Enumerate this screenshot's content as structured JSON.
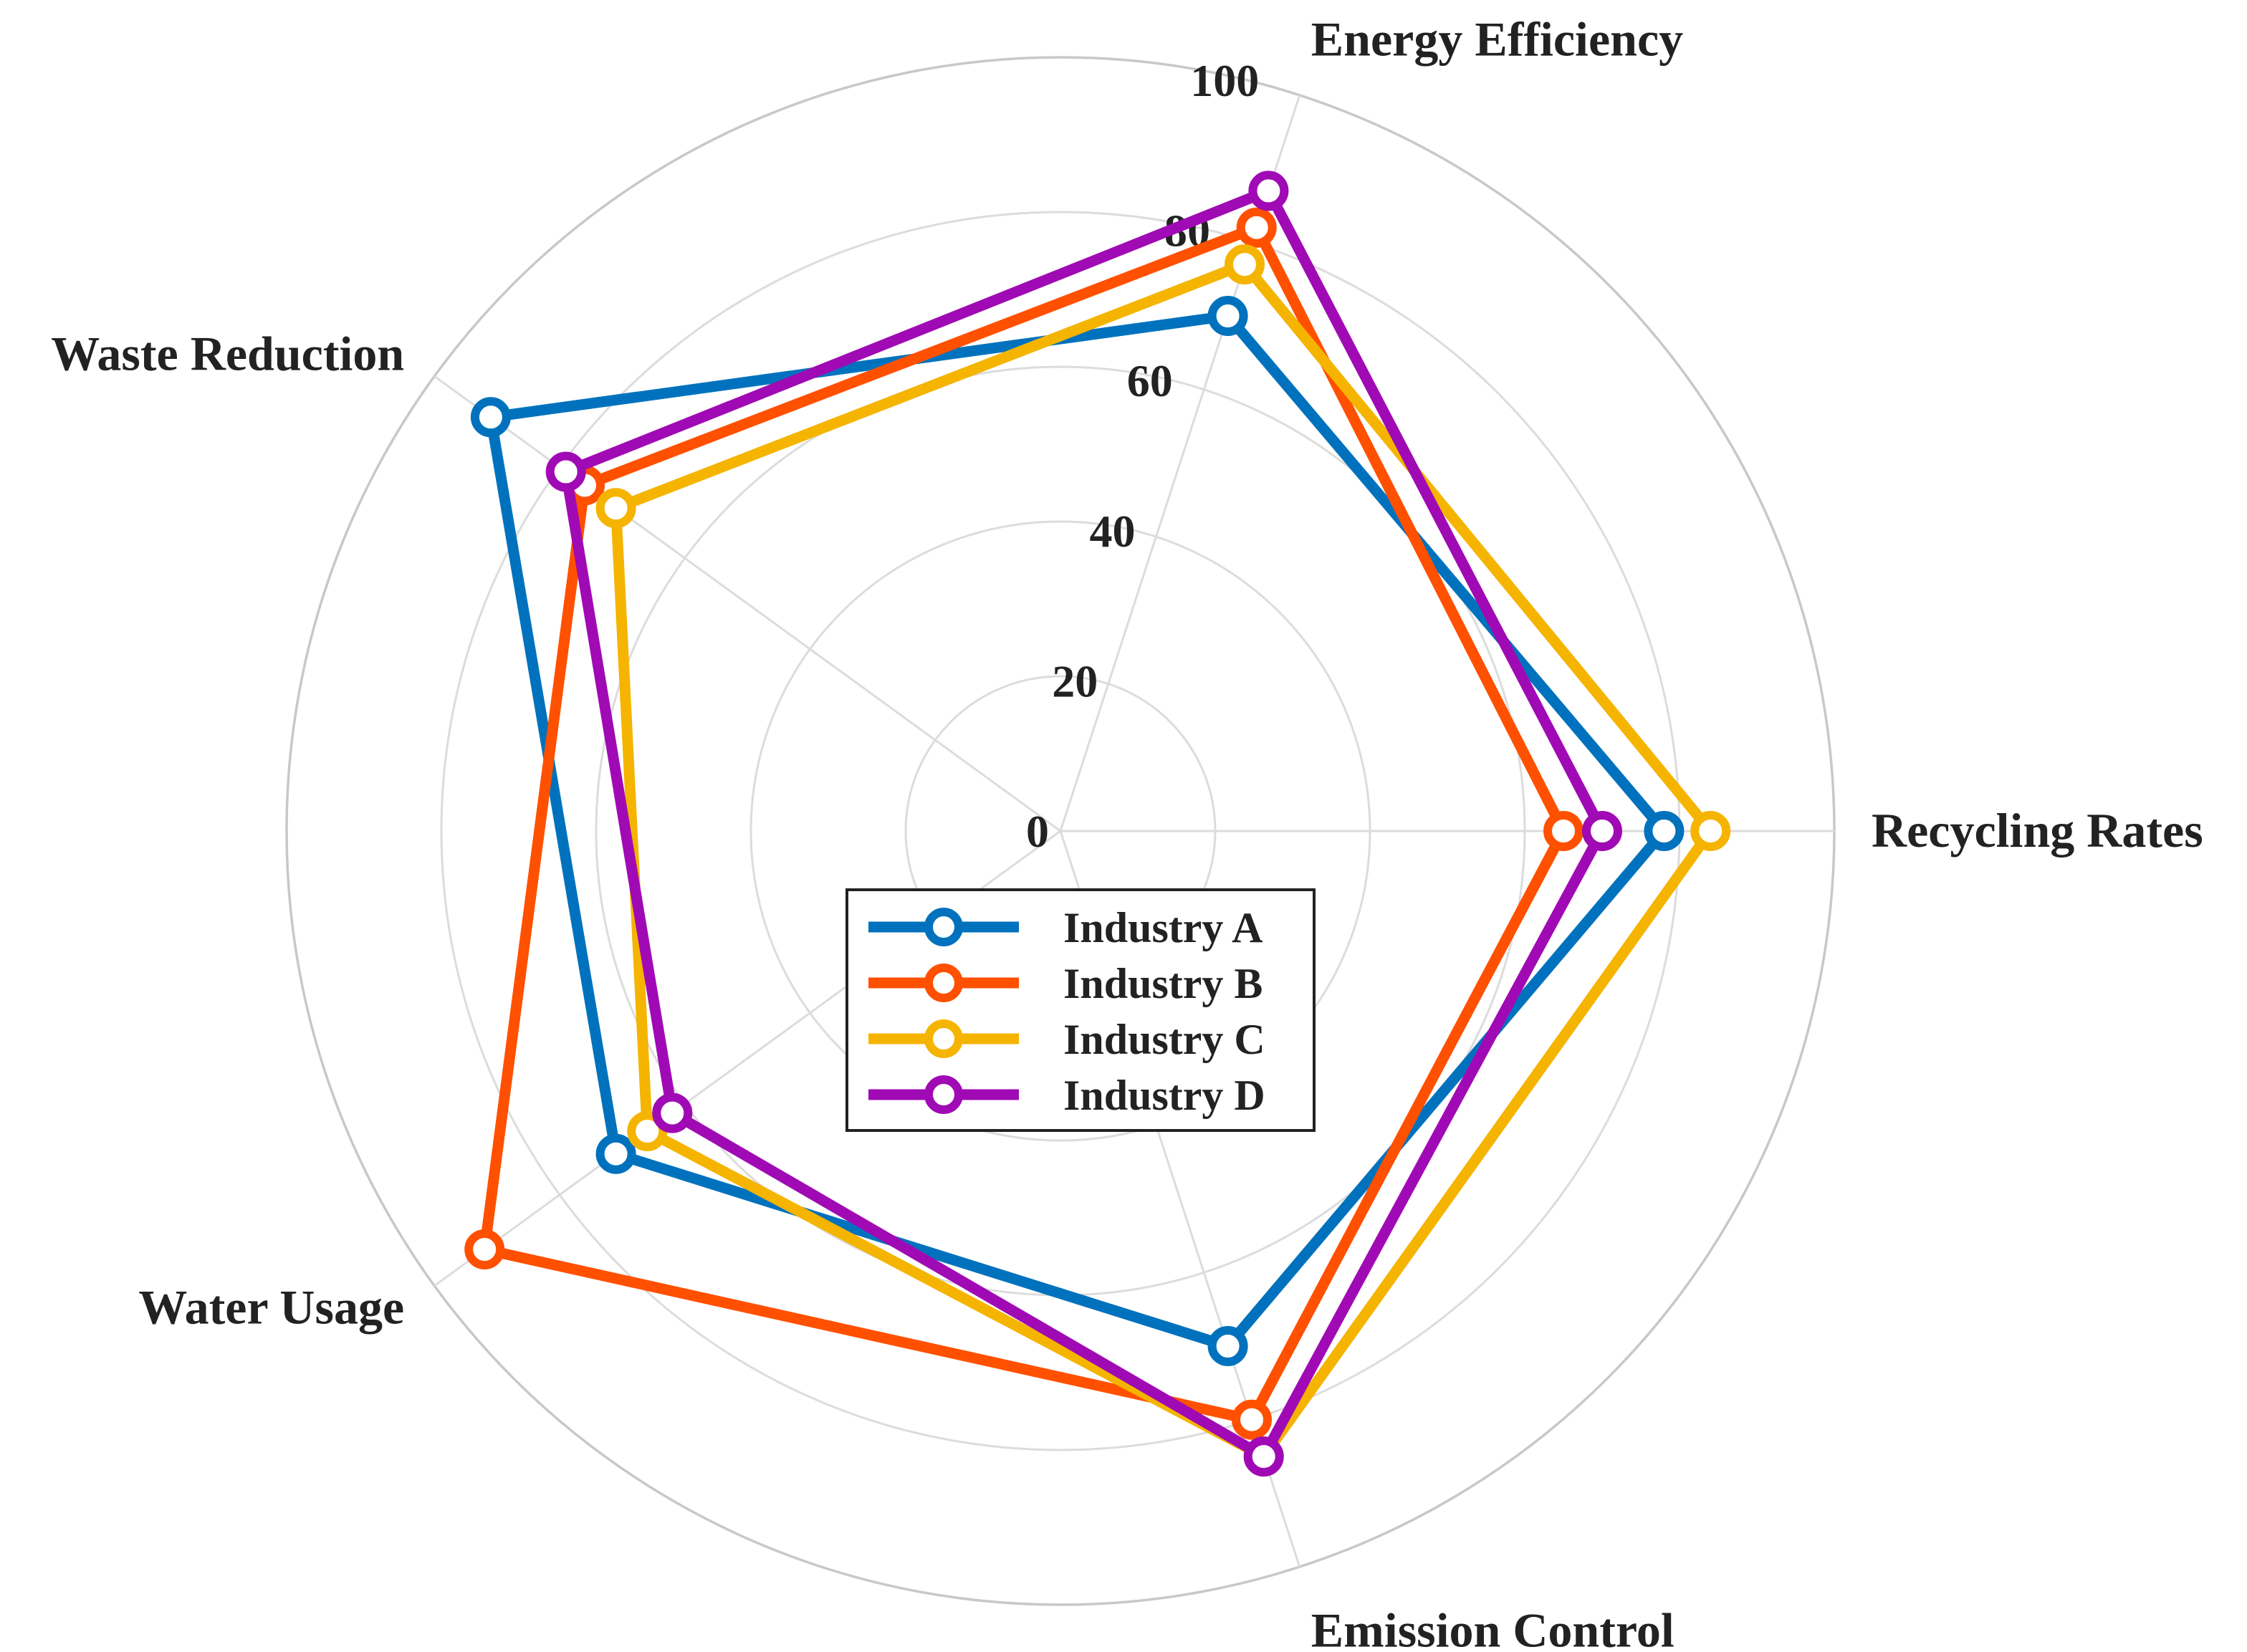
{
  "chart_data": {
    "type": "radar",
    "axes": [
      "Recycling Rates",
      "Energy Efficiency",
      "Waste Reduction",
      "Water Usage",
      "Emission Control"
    ],
    "rlim": [
      0,
      100
    ],
    "rticks": [
      0,
      20,
      40,
      60,
      80,
      100
    ],
    "grid": true,
    "legend_position": "center-lower",
    "series": [
      {
        "name": "Industry A",
        "color": "#0072BD",
        "values": [
          78,
          70,
          91,
          71,
          70
        ]
      },
      {
        "name": "Industry B",
        "color": "#FF5000",
        "values": [
          65,
          82,
          76,
          92,
          80
        ]
      },
      {
        "name": "Industry C",
        "color": "#F5B400",
        "values": [
          84,
          77,
          71,
          66,
          85
        ]
      },
      {
        "name": "Industry D",
        "color": "#A00AB4",
        "values": [
          70,
          87,
          79,
          62,
          85
        ]
      }
    ]
  }
}
